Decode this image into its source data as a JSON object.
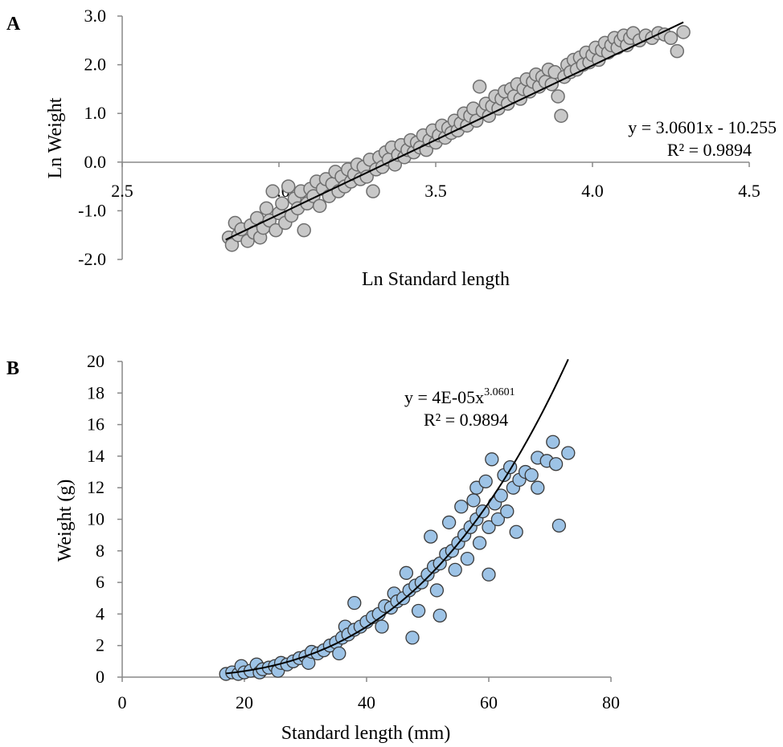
{
  "chart_data": [
    {
      "panel_label": "A",
      "type": "scatter",
      "xlabel": "Ln Standard length",
      "ylabel": "Ln Weight",
      "xlim": [
        2.5,
        4.5
      ],
      "ylim": [
        -2.0,
        3.0
      ],
      "x_ticks": [
        "2.5",
        "3.0",
        "3.5",
        "4.0",
        "4.5"
      ],
      "y_ticks": [
        "-2.0",
        "-1.0",
        "0.0",
        "1.0",
        "2.0",
        "3.0"
      ],
      "grid": false,
      "marker_color": "#c8c8c8",
      "marker_edge": "#6e6e6e",
      "trendline": {
        "kind": "linear",
        "slope": 3.0601,
        "intercept": -10.255,
        "x_range": [
          2.83,
          4.29
        ]
      },
      "equation": "y = 3.0601x - 10.255",
      "r_squared": "R² = 0.9894",
      "points": [
        [
          2.84,
          -1.55
        ],
        [
          2.85,
          -1.7
        ],
        [
          2.86,
          -1.25
        ],
        [
          2.87,
          -1.5
        ],
        [
          2.88,
          -1.38
        ],
        [
          2.9,
          -1.62
        ],
        [
          2.91,
          -1.3
        ],
        [
          2.92,
          -1.45
        ],
        [
          2.93,
          -1.15
        ],
        [
          2.94,
          -1.55
        ],
        [
          2.95,
          -1.35
        ],
        [
          2.96,
          -0.95
        ],
        [
          2.97,
          -1.2
        ],
        [
          2.98,
          -0.6
        ],
        [
          2.99,
          -1.4
        ],
        [
          3.0,
          -1.05
        ],
        [
          3.01,
          -0.85
        ],
        [
          3.02,
          -1.25
        ],
        [
          3.03,
          -0.5
        ],
        [
          3.04,
          -1.1
        ],
        [
          3.05,
          -0.75
        ],
        [
          3.06,
          -0.95
        ],
        [
          3.07,
          -0.6
        ],
        [
          3.08,
          -1.4
        ],
        [
          3.09,
          -0.85
        ],
        [
          3.1,
          -0.55
        ],
        [
          3.11,
          -0.7
        ],
        [
          3.12,
          -0.4
        ],
        [
          3.13,
          -0.9
        ],
        [
          3.14,
          -0.55
        ],
        [
          3.15,
          -0.35
        ],
        [
          3.16,
          -0.7
        ],
        [
          3.17,
          -0.45
        ],
        [
          3.18,
          -0.2
        ],
        [
          3.19,
          -0.6
        ],
        [
          3.2,
          -0.3
        ],
        [
          3.21,
          -0.5
        ],
        [
          3.22,
          -0.15
        ],
        [
          3.23,
          -0.4
        ],
        [
          3.24,
          -0.25
        ],
        [
          3.25,
          -0.05
        ],
        [
          3.26,
          -0.35
        ],
        [
          3.27,
          -0.1
        ],
        [
          3.28,
          -0.3
        ],
        [
          3.29,
          0.05
        ],
        [
          3.3,
          -0.6
        ],
        [
          3.31,
          -0.15
        ],
        [
          3.32,
          0.1
        ],
        [
          3.33,
          -0.1
        ],
        [
          3.34,
          0.2
        ],
        [
          3.35,
          0.05
        ],
        [
          3.36,
          0.3
        ],
        [
          3.37,
          -0.05
        ],
        [
          3.38,
          0.15
        ],
        [
          3.39,
          0.35
        ],
        [
          3.4,
          0.1
        ],
        [
          3.41,
          0.25
        ],
        [
          3.42,
          0.45
        ],
        [
          3.43,
          0.2
        ],
        [
          3.44,
          0.4
        ],
        [
          3.45,
          0.3
        ],
        [
          3.46,
          0.55
        ],
        [
          3.47,
          0.25
        ],
        [
          3.48,
          0.45
        ],
        [
          3.49,
          0.65
        ],
        [
          3.5,
          0.4
        ],
        [
          3.51,
          0.55
        ],
        [
          3.52,
          0.75
        ],
        [
          3.53,
          0.5
        ],
        [
          3.54,
          0.7
        ],
        [
          3.55,
          0.6
        ],
        [
          3.56,
          0.85
        ],
        [
          3.57,
          0.65
        ],
        [
          3.58,
          0.8
        ],
        [
          3.59,
          1.0
        ],
        [
          3.6,
          0.75
        ],
        [
          3.61,
          0.95
        ],
        [
          3.62,
          1.1
        ],
        [
          3.63,
          0.85
        ],
        [
          3.64,
          1.55
        ],
        [
          3.65,
          1.05
        ],
        [
          3.66,
          1.2
        ],
        [
          3.67,
          0.95
        ],
        [
          3.68,
          1.15
        ],
        [
          3.69,
          1.35
        ],
        [
          3.7,
          1.1
        ],
        [
          3.71,
          1.3
        ],
        [
          3.72,
          1.45
        ],
        [
          3.73,
          1.2
        ],
        [
          3.74,
          1.5
        ],
        [
          3.75,
          1.35
        ],
        [
          3.76,
          1.6
        ],
        [
          3.77,
          1.3
        ],
        [
          3.78,
          1.5
        ],
        [
          3.79,
          1.7
        ],
        [
          3.8,
          1.45
        ],
        [
          3.81,
          1.65
        ],
        [
          3.82,
          1.8
        ],
        [
          3.83,
          1.55
        ],
        [
          3.84,
          1.75
        ],
        [
          3.85,
          1.65
        ],
        [
          3.86,
          1.9
        ],
        [
          3.87,
          1.6
        ],
        [
          3.88,
          1.85
        ],
        [
          3.89,
          1.35
        ],
        [
          3.9,
          0.95
        ],
        [
          3.91,
          1.75
        ],
        [
          3.92,
          2.0
        ],
        [
          3.93,
          1.85
        ],
        [
          3.94,
          2.1
        ],
        [
          3.95,
          1.9
        ],
        [
          3.96,
          2.15
        ],
        [
          3.97,
          2.0
        ],
        [
          3.98,
          2.25
        ],
        [
          3.99,
          2.05
        ],
        [
          4.0,
          2.2
        ],
        [
          4.01,
          2.35
        ],
        [
          4.02,
          2.1
        ],
        [
          4.03,
          2.3
        ],
        [
          4.04,
          2.45
        ],
        [
          4.05,
          2.25
        ],
        [
          4.06,
          2.4
        ],
        [
          4.07,
          2.55
        ],
        [
          4.08,
          2.35
        ],
        [
          4.09,
          2.5
        ],
        [
          4.1,
          2.6
        ],
        [
          4.11,
          2.4
        ],
        [
          4.12,
          2.55
        ],
        [
          4.13,
          2.65
        ],
        [
          4.15,
          2.5
        ],
        [
          4.17,
          2.6
        ],
        [
          4.19,
          2.55
        ],
        [
          4.21,
          2.65
        ],
        [
          4.23,
          2.62
        ],
        [
          4.25,
          2.55
        ],
        [
          4.27,
          2.28
        ],
        [
          4.29,
          2.67
        ]
      ]
    },
    {
      "panel_label": "B",
      "type": "scatter",
      "xlabel": "Standard length (mm)",
      "ylabel": "Weight  (g)",
      "xlim": [
        0,
        80
      ],
      "ylim": [
        0,
        20
      ],
      "x_ticks": [
        "0",
        "20",
        "40",
        "60",
        "80"
      ],
      "y_ticks": [
        "0",
        "2",
        "4",
        "6",
        "8",
        "10",
        "12",
        "14",
        "16",
        "18",
        "20"
      ],
      "grid": false,
      "marker_color": "#9dc3e6",
      "marker_edge": "#3a3a3a",
      "trendline": {
        "kind": "power",
        "coefficient": 4e-05,
        "exponent": 3.0601,
        "x_range": [
          17,
          73
        ]
      },
      "equation": "y = 4E-05x",
      "equation_exponent": "3.0601",
      "r_squared": "R² = 0.9894",
      "points": [
        [
          17,
          0.2
        ],
        [
          18,
          0.3
        ],
        [
          19,
          0.2
        ],
        [
          19.5,
          0.7
        ],
        [
          20,
          0.3
        ],
        [
          21,
          0.4
        ],
        [
          22,
          0.8
        ],
        [
          22.5,
          0.3
        ],
        [
          23,
          0.5
        ],
        [
          24,
          0.6
        ],
        [
          25,
          0.7
        ],
        [
          25.5,
          0.4
        ],
        [
          26,
          0.9
        ],
        [
          27,
          0.8
        ],
        [
          28,
          1.0
        ],
        [
          29,
          1.2
        ],
        [
          30,
          1.3
        ],
        [
          30.5,
          0.9
        ],
        [
          31,
          1.6
        ],
        [
          32,
          1.5
        ],
        [
          33,
          1.7
        ],
        [
          34,
          2.0
        ],
        [
          35,
          2.2
        ],
        [
          35.5,
          1.5
        ],
        [
          36,
          2.5
        ],
        [
          36.5,
          3.2
        ],
        [
          37,
          2.7
        ],
        [
          38,
          3.0
        ],
        [
          38,
          4.7
        ],
        [
          39,
          3.2
        ],
        [
          40,
          3.5
        ],
        [
          41,
          3.8
        ],
        [
          42,
          4.0
        ],
        [
          42.5,
          3.2
        ],
        [
          43,
          4.5
        ],
        [
          44,
          4.4
        ],
        [
          44.5,
          5.3
        ],
        [
          45,
          4.8
        ],
        [
          46,
          5.0
        ],
        [
          46.5,
          6.6
        ],
        [
          47,
          5.5
        ],
        [
          47.5,
          2.5
        ],
        [
          48,
          5.8
        ],
        [
          48.5,
          4.2
        ],
        [
          49,
          6.0
        ],
        [
          50,
          6.5
        ],
        [
          50.5,
          8.9
        ],
        [
          51,
          7.0
        ],
        [
          51.5,
          5.5
        ],
        [
          52,
          7.2
        ],
        [
          52,
          3.9
        ],
        [
          53,
          7.8
        ],
        [
          53.5,
          9.8
        ],
        [
          54,
          8.0
        ],
        [
          54.5,
          6.8
        ],
        [
          55,
          8.5
        ],
        [
          55.5,
          10.8
        ],
        [
          56,
          9.0
        ],
        [
          56.5,
          7.5
        ],
        [
          57,
          9.5
        ],
        [
          57.5,
          11.2
        ],
        [
          58,
          10.0
        ],
        [
          58,
          12.0
        ],
        [
          58.5,
          8.5
        ],
        [
          59,
          10.5
        ],
        [
          59.5,
          12.4
        ],
        [
          60,
          9.5
        ],
        [
          60,
          6.5
        ],
        [
          60.5,
          13.8
        ],
        [
          61,
          11.0
        ],
        [
          61.5,
          10.0
        ],
        [
          62,
          11.5
        ],
        [
          62.5,
          12.8
        ],
        [
          63,
          10.5
        ],
        [
          63.5,
          13.3
        ],
        [
          64,
          12.0
        ],
        [
          64.5,
          9.2
        ],
        [
          65,
          12.5
        ],
        [
          66,
          13.0
        ],
        [
          67,
          12.8
        ],
        [
          68,
          12.0
        ],
        [
          68,
          13.9
        ],
        [
          69.5,
          13.7
        ],
        [
          70.5,
          14.9
        ],
        [
          71,
          13.5
        ],
        [
          71.5,
          9.6
        ],
        [
          73,
          14.2
        ]
      ]
    }
  ]
}
